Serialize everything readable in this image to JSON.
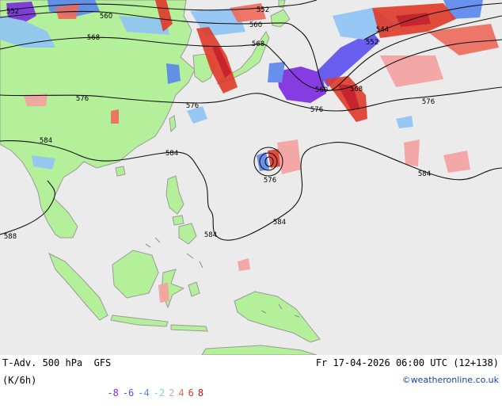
{
  "map": {
    "contour_labels": [
      {
        "id": "c552-nw",
        "text": "552"
      },
      {
        "id": "c560-n",
        "text": "560"
      },
      {
        "id": "c552-n",
        "text": "552"
      },
      {
        "id": "c568-w",
        "text": "568"
      },
      {
        "id": "c560-jp",
        "text": "560"
      },
      {
        "id": "c568-jp",
        "text": "568"
      },
      {
        "id": "c544-ne",
        "text": "544"
      },
      {
        "id": "c552-ne",
        "text": "552"
      },
      {
        "id": "c576-w",
        "text": "576"
      },
      {
        "id": "c576-mid",
        "text": "576"
      },
      {
        "id": "c560-e",
        "text": "560"
      },
      {
        "id": "c568-e",
        "text": "568"
      },
      {
        "id": "c576-e",
        "text": "576"
      },
      {
        "id": "c576-far-e",
        "text": "576"
      },
      {
        "id": "c584-w",
        "text": "584"
      },
      {
        "id": "c584-mid",
        "text": "584"
      },
      {
        "id": "c576-low",
        "text": "576"
      },
      {
        "id": "c584-e",
        "text": "584"
      },
      {
        "id": "c584-sw",
        "text": "584"
      },
      {
        "id": "c584-s",
        "text": "584"
      },
      {
        "id": "c588-far-w",
        "text": "588"
      }
    ]
  },
  "footer": {
    "title": "T-Adv. 500 hPa  GFS",
    "valid_time": "Fr 17-04-2026 06:00 UTC (12+138)",
    "units": "(K/6h)",
    "legend": [
      {
        "value": "-8",
        "color": "#7b2be0"
      },
      {
        "value": "-6",
        "color": "#5b4ff0"
      },
      {
        "value": "-4",
        "color": "#5a86ee"
      },
      {
        "value": "-2",
        "color": "#8ec4f5"
      },
      {
        "value": "2",
        "color": "#f5a0a0"
      },
      {
        "value": "4",
        "color": "#ee6a5a"
      },
      {
        "value": "6",
        "color": "#e03a2a"
      },
      {
        "value": "8",
        "color": "#c4101a"
      }
    ],
    "credit": "©weatheronline.co.uk"
  }
}
